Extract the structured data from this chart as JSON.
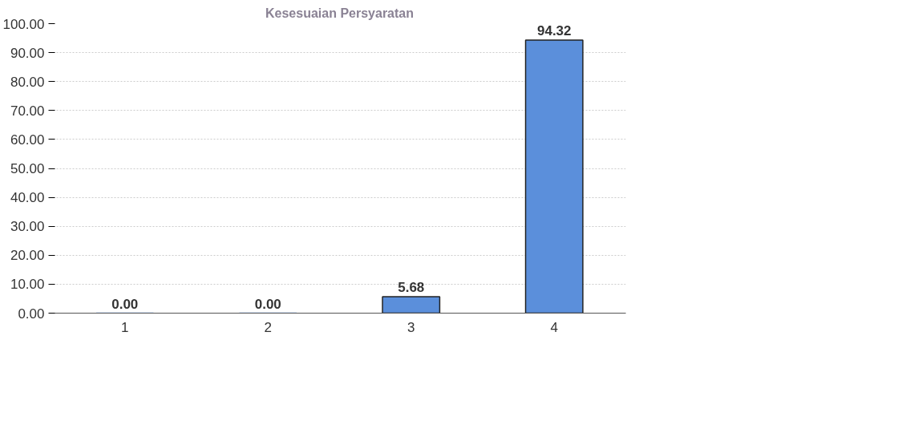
{
  "chart_data": {
    "type": "bar",
    "title": "Kesesuaian Persyaratan",
    "categories": [
      "1",
      "2",
      "3",
      "4"
    ],
    "values": [
      0,
      0,
      5.68,
      94.32
    ],
    "value_labels": [
      "0.00",
      "0.00",
      "5.68",
      "94.32"
    ],
    "color": "#5b8fdb",
    "ylim": [
      0,
      100
    ],
    "yticks": [
      {
        "value": 0,
        "label": "0.00"
      },
      {
        "value": 10,
        "label": "10.00"
      },
      {
        "value": 20,
        "label": "20.00"
      },
      {
        "value": 30,
        "label": "30.00"
      },
      {
        "value": 40,
        "label": "40.00"
      },
      {
        "value": 50,
        "label": "50.00"
      },
      {
        "value": 60,
        "label": "60.00"
      },
      {
        "value": 70,
        "label": "70.00"
      },
      {
        "value": 80,
        "label": "80.00"
      },
      {
        "value": 90,
        "label": "90.00"
      },
      {
        "value": 100,
        "label": "100.00"
      }
    ],
    "grid": "y"
  }
}
